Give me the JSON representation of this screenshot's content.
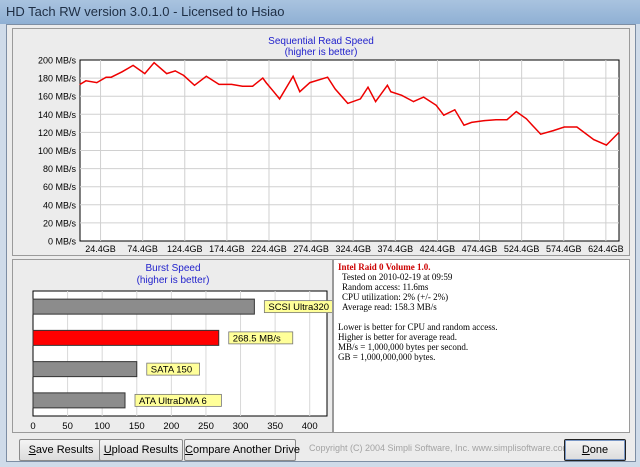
{
  "window": {
    "title": "HD Tach RW version 3.0.1.0 - Licensed to Hsiao"
  },
  "seq": {
    "title": "Sequential Read Speed",
    "subtitle": "(higher is better)",
    "y_ticks": [
      "200 MB/s",
      "180 MB/s",
      "160 MB/s",
      "140 MB/s",
      "120 MB/s",
      "100 MB/s",
      "80 MB/s",
      "60 MB/s",
      "40 MB/s",
      "20 MB/s",
      "0 MB/s"
    ],
    "x_ticks": [
      "24.4GB",
      "74.4GB",
      "124.4GB",
      "174.4GB",
      "224.4GB",
      "274.4GB",
      "324.4GB",
      "374.4GB",
      "424.4GB",
      "474.4GB",
      "524.4GB",
      "574.4GB",
      "624.4GB"
    ]
  },
  "chart_data": {
    "type": "line",
    "x_unit": "GB",
    "y_unit": "MB/s",
    "xlim": [
      0,
      640
    ],
    "ylim": [
      0,
      200
    ],
    "grid": true,
    "x": [
      0,
      7,
      20,
      31,
      37,
      50,
      63,
      77,
      88,
      103,
      113,
      123,
      136,
      150,
      165,
      180,
      193,
      205,
      217,
      221,
      230,
      237,
      253,
      261,
      273,
      294,
      303,
      318,
      333,
      342,
      351,
      365,
      369,
      382,
      396,
      408,
      423,
      432,
      445,
      456,
      465,
      480,
      494,
      507,
      518,
      530,
      537,
      547,
      562,
      575,
      590,
      610,
      625,
      640
    ],
    "y": [
      173,
      177,
      175,
      181,
      181,
      187,
      194,
      185,
      197,
      185,
      188,
      183,
      172,
      182,
      173,
      173,
      171,
      171,
      180,
      175,
      165,
      157,
      182,
      165,
      175,
      181,
      168,
      152,
      157,
      170,
      154,
      172,
      165,
      161,
      154,
      159,
      150,
      139,
      145,
      128,
      131,
      133,
      134,
      134,
      143,
      135,
      128,
      118,
      122,
      126,
      126,
      112,
      106,
      120
    ]
  },
  "burst": {
    "title": "Burst Speed",
    "subtitle": "(higher is better)",
    "x_ticks": [
      "0",
      "50",
      "100",
      "150",
      "200",
      "250",
      "300",
      "350",
      "400"
    ],
    "xlim": [
      0,
      425
    ],
    "bars": [
      {
        "label": "SCSI Ultra320",
        "value": 320,
        "color": "#8c8c8c"
      },
      {
        "label": "268.5 MB/s",
        "value": 268.5,
        "color": "#ff0000"
      },
      {
        "label": "SATA 150",
        "value": 150,
        "color": "#8c8c8c"
      },
      {
        "label": "ATA UltraDMA 6",
        "value": 133,
        "color": "#8c8c8c"
      }
    ]
  },
  "info": {
    "header": "Intel Raid 0 Volume 1.0.",
    "lines": [
      "Tested on 2010-02-19 at 09:59",
      "Random access: 11.6ms",
      "CPU utilization: 2% (+/- 2%)",
      "Average read: 158.3 MB/s",
      "Lower is better for CPU and random access.",
      "Higher is better for average read.",
      "MB/s = 1,000,000 bytes per second.",
      "GB = 1,000,000,000 bytes."
    ]
  },
  "buttons": {
    "save_u": "S",
    "save_rest": "ave Results",
    "upload_u": "U",
    "upload_rest": "pload Results",
    "compare_u": "C",
    "compare_rest": "ompare Another Drive",
    "done_u": "D",
    "done_rest": "one"
  },
  "copyright": "Copyright (C) 2004 Simpli Software, Inc. www.simplisoftware.com"
}
